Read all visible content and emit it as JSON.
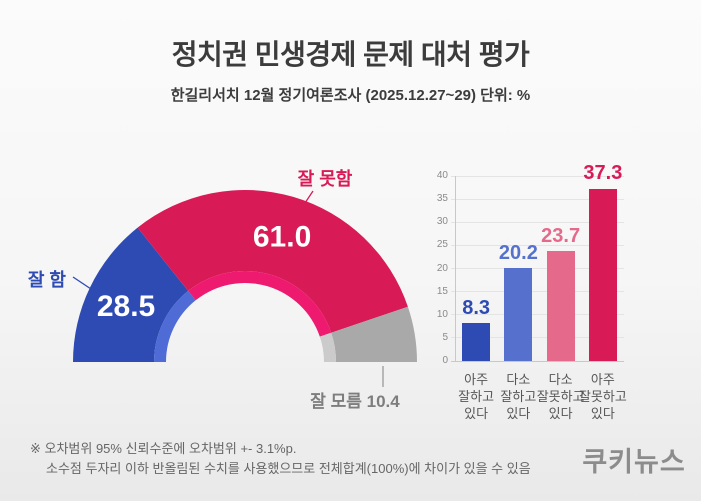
{
  "header": {
    "title": "정치권 민생경제 문제 대처 평가",
    "subtitle": "한길리서치 12월 정기여론조사 (2025.12.27~29) 단위: %"
  },
  "chart_data": [
    {
      "type": "pie",
      "variant": "semi-donut",
      "title": "정치권 민생경제 문제 대처 평가",
      "unit": "%",
      "segments": [
        {
          "label": "잘 함",
          "value": 28.5,
          "color": "#2d4bb2",
          "inner_color": "#4f6bd6",
          "value_inside": true
        },
        {
          "label": "잘 못함",
          "value": 61.0,
          "color": "#d81a56",
          "inner_color": "#ee1a70",
          "value_inside": true
        },
        {
          "label": "잘 모름",
          "value": 10.4,
          "color": "#a9a9a9",
          "inner_color": "#cbcbcb",
          "value_inside": false,
          "label_color": "#7d7d7d"
        }
      ]
    },
    {
      "type": "bar",
      "categories": [
        "아주\n잘하고\n있다",
        "다소\n잘하고\n있다",
        "다소\n잘못하고\n있다",
        "아주\n잘못하고\n있다"
      ],
      "values": [
        8.3,
        20.2,
        23.7,
        37.3
      ],
      "colors": [
        "#2d4bb2",
        "#5571cd",
        "#e5698b",
        "#d81a56"
      ],
      "ylim": [
        0,
        40
      ],
      "ytick_step": 5,
      "grid": true,
      "legend": "none"
    }
  ],
  "footer": {
    "note_line1": "※ 오차범위 95% 신뢰수준에 오차범위 +- 3.1%p.",
    "note_line2": "소수점 두자리 이하 반올림된 수치를 사용했으므로 전체합계(100%)에 차이가 있을 수 있음",
    "logo": "쿠키뉴스"
  }
}
